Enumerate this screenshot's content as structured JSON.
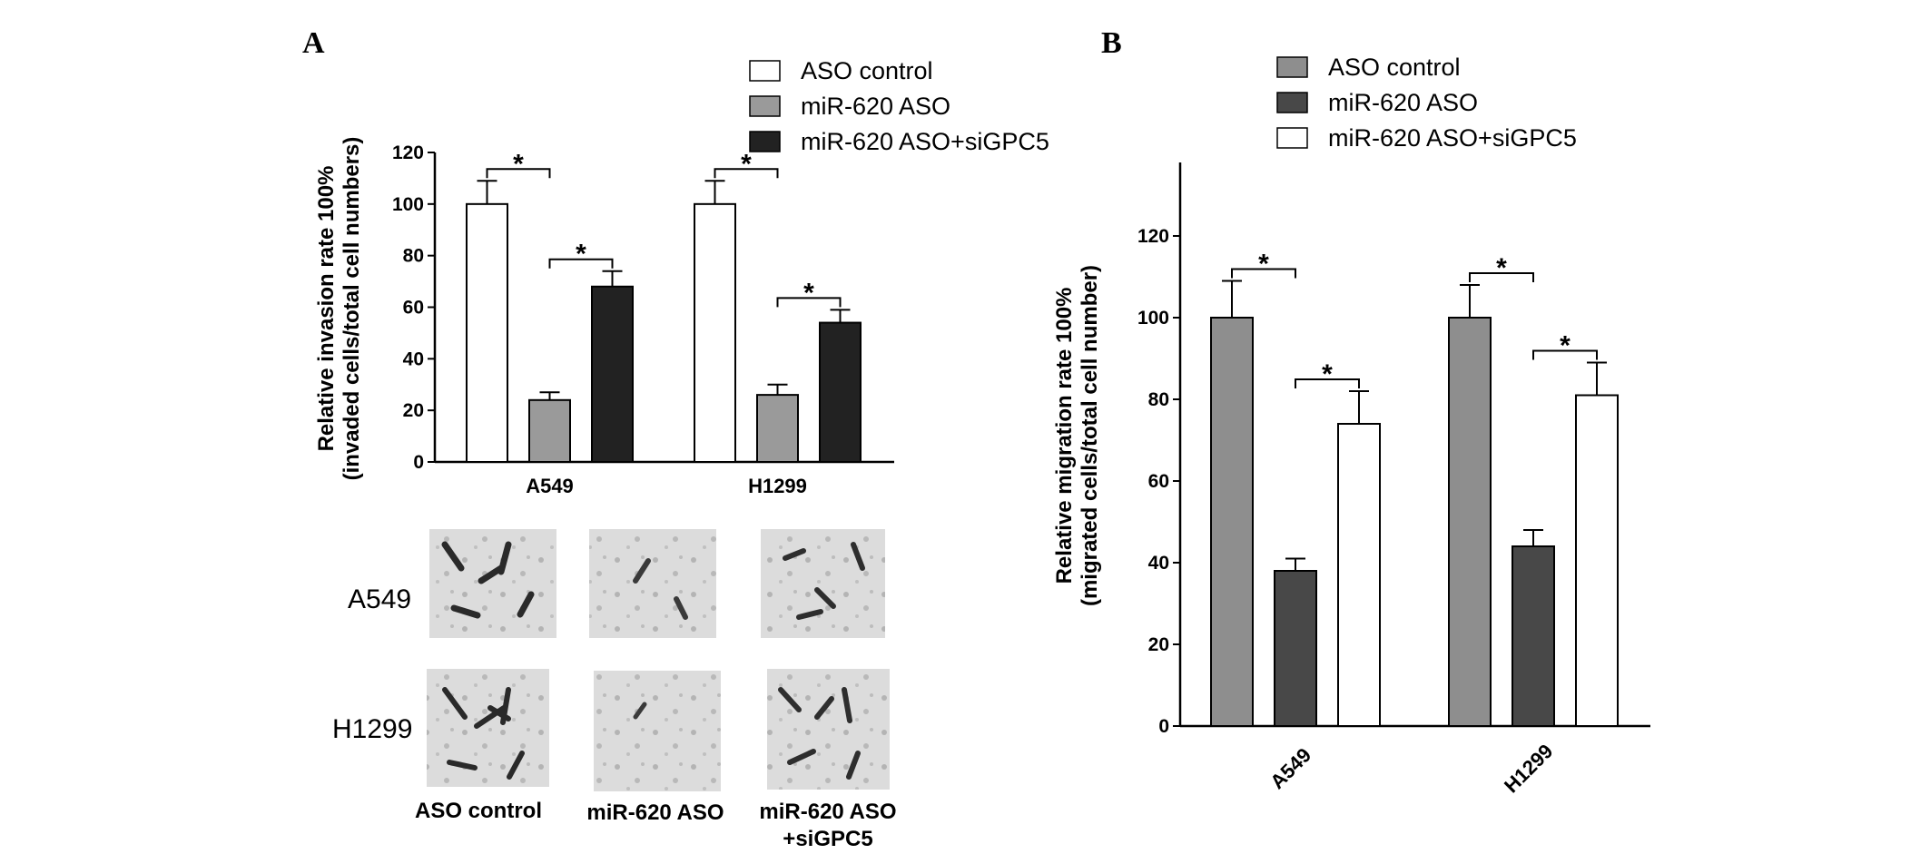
{
  "panel_labels": {
    "a": "A",
    "b": "B"
  },
  "micrographs": {
    "rows": [
      "A549",
      "H1299"
    ],
    "columns": [
      "ASO control",
      "miR-620 ASO",
      "miR-620 ASO",
      "+siGPC5"
    ]
  },
  "colors": {
    "panel_a": [
      "#ffffff",
      "#9a9a9a",
      "#222222"
    ],
    "panel_b": [
      "#8e8e8e",
      "#484848",
      "#ffffff"
    ],
    "outline": "#000000"
  },
  "chart_data": [
    {
      "panel": "A",
      "type": "bar",
      "categories": [
        "A549",
        "H1299"
      ],
      "series": [
        {
          "name": "ASO control",
          "values": [
            100,
            100
          ],
          "errors": [
            9,
            9
          ]
        },
        {
          "name": "miR-620 ASO",
          "values": [
            24,
            26
          ],
          "errors": [
            3,
            4
          ]
        },
        {
          "name": "miR-620 ASO+siGPC5",
          "values": [
            68,
            54
          ],
          "errors": [
            6,
            5
          ]
        }
      ],
      "ylabel_lines": [
        "Relative invasion rate 100%",
        "(invaded cells/total cell numbers)"
      ],
      "yticks": [
        0,
        20,
        40,
        60,
        80,
        100,
        120
      ],
      "ylim": [
        0,
        120
      ],
      "legend": "top-right",
      "significance": [
        {
          "category": "A549",
          "pair": [
            0,
            1
          ],
          "label": "*"
        },
        {
          "category": "A549",
          "pair": [
            1,
            2
          ],
          "label": "*"
        },
        {
          "category": "H1299",
          "pair": [
            0,
            1
          ],
          "label": "*"
        },
        {
          "category": "H1299",
          "pair": [
            1,
            2
          ],
          "label": "*"
        }
      ]
    },
    {
      "panel": "B",
      "type": "bar",
      "categories": [
        "A549",
        "H1299"
      ],
      "series": [
        {
          "name": "ASO control",
          "values": [
            100,
            100
          ],
          "errors": [
            9,
            8
          ]
        },
        {
          "name": "miR-620 ASO",
          "values": [
            38,
            44
          ],
          "errors": [
            3,
            4
          ]
        },
        {
          "name": "miR-620 ASO+siGPC5",
          "values": [
            74,
            81
          ],
          "errors": [
            8,
            8
          ]
        }
      ],
      "ylabel_lines": [
        "Relative migration rate 100%",
        "(migrated cells/total cell number)"
      ],
      "yticks": [
        0,
        20,
        40,
        60,
        80,
        100,
        120
      ],
      "ylim": [
        0,
        138
      ],
      "legend": "top-right",
      "significance": [
        {
          "category": "A549",
          "pair": [
            0,
            1
          ],
          "label": "*"
        },
        {
          "category": "A549",
          "pair": [
            1,
            2
          ],
          "label": "*"
        },
        {
          "category": "H1299",
          "pair": [
            0,
            1
          ],
          "label": "*"
        },
        {
          "category": "H1299",
          "pair": [
            1,
            2
          ],
          "label": "*"
        }
      ]
    }
  ]
}
